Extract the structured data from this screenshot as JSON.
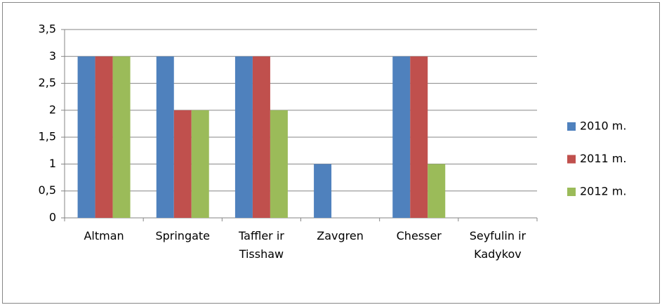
{
  "chart_data": {
    "type": "bar",
    "categories": [
      "Altman",
      "Springate",
      "Taffler ir Tisshaw",
      "Zavgren",
      "Chesser",
      "Seyfulin ir Kadykov"
    ],
    "series": [
      {
        "name": "2010 m.",
        "color": "#4f81bd",
        "values": [
          3,
          3,
          3,
          1,
          3,
          0
        ]
      },
      {
        "name": "2011 m.",
        "color": "#c0504d",
        "values": [
          3,
          2,
          3,
          0,
          3,
          0
        ]
      },
      {
        "name": "2012 m.",
        "color": "#9bbb59",
        "values": [
          3,
          2,
          2,
          0,
          1,
          0
        ]
      }
    ],
    "ylim": [
      0,
      3.5
    ],
    "yticks": [
      0,
      {
        "value": 0.5,
        "label": "0,5"
      },
      1,
      {
        "value": 1.5,
        "label": "1,5"
      },
      2,
      {
        "value": 2.5,
        "label": "2,5"
      },
      3,
      {
        "value": 3.5,
        "label": "3,5"
      }
    ],
    "grid": true,
    "legend": "right"
  }
}
